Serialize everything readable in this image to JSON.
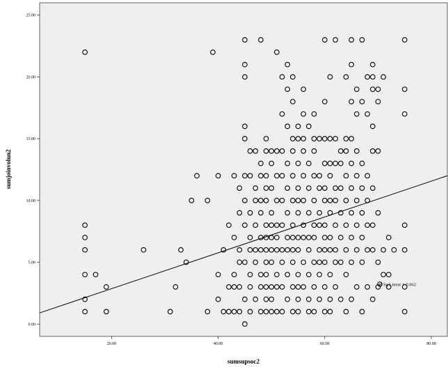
{
  "chart_data": {
    "type": "scatter",
    "title": "",
    "xlabel": "sumsupsoc2",
    "ylabel": "sumjoinvolun2",
    "xlim": [
      6.5,
      83
    ],
    "ylim": [
      -1,
      26
    ],
    "x_ticks": [
      {
        "value": 20,
        "label": "20.00"
      },
      {
        "value": 40,
        "label": "40.00"
      },
      {
        "value": 60,
        "label": "60.00"
      },
      {
        "value": 80,
        "label": "80.00"
      }
    ],
    "y_ticks": [
      {
        "value": 0,
        "label": "0.00"
      },
      {
        "value": 5,
        "label": "5.00"
      },
      {
        "value": 10,
        "label": "10.00"
      },
      {
        "value": 15,
        "label": "15.00"
      },
      {
        "value": 20,
        "label": "20.00"
      },
      {
        "value": 25,
        "label": "25.00"
      }
    ],
    "grid": false,
    "fit_line": {
      "type": "linear",
      "x": [
        6.5,
        83
      ],
      "y": [
        0.9,
        12.0
      ],
      "legend_label": "R Sq Linear = 0.062"
    },
    "legend_position": "inside-right",
    "background": "#efefef",
    "marker": "open-circle",
    "points": [
      [
        15,
        22
      ],
      [
        15,
        8
      ],
      [
        15,
        7
      ],
      [
        15,
        6
      ],
      [
        15,
        4
      ],
      [
        15,
        2
      ],
      [
        15,
        1
      ],
      [
        17,
        4
      ],
      [
        19,
        3
      ],
      [
        19,
        1
      ],
      [
        26,
        6
      ],
      [
        31,
        1
      ],
      [
        32,
        3
      ],
      [
        33,
        6
      ],
      [
        34,
        5
      ],
      [
        35,
        10
      ],
      [
        36,
        12
      ],
      [
        38,
        10
      ],
      [
        38,
        1
      ],
      [
        39,
        22
      ],
      [
        40,
        12
      ],
      [
        40,
        4
      ],
      [
        40,
        2
      ],
      [
        41,
        6
      ],
      [
        41,
        1
      ],
      [
        42,
        8
      ],
      [
        42,
        3
      ],
      [
        42,
        1
      ],
      [
        43,
        12
      ],
      [
        43,
        7
      ],
      [
        43,
        4
      ],
      [
        43,
        3
      ],
      [
        43,
        1
      ],
      [
        44,
        11
      ],
      [
        44,
        9
      ],
      [
        44,
        6
      ],
      [
        44,
        5
      ],
      [
        44,
        3
      ],
      [
        44,
        1
      ],
      [
        45,
        23
      ],
      [
        45,
        21
      ],
      [
        45,
        20
      ],
      [
        45,
        16
      ],
      [
        45,
        15
      ],
      [
        45,
        12
      ],
      [
        45,
        10
      ],
      [
        45,
        8
      ],
      [
        45,
        5
      ],
      [
        45,
        2
      ],
      [
        45,
        0
      ],
      [
        46,
        14
      ],
      [
        46,
        12
      ],
      [
        46,
        9
      ],
      [
        46,
        7
      ],
      [
        46,
        6
      ],
      [
        46,
        4
      ],
      [
        46,
        3
      ],
      [
        46,
        1
      ],
      [
        47,
        14
      ],
      [
        47,
        11
      ],
      [
        47,
        10
      ],
      [
        47,
        8
      ],
      [
        47,
        6
      ],
      [
        47,
        5
      ],
      [
        47,
        2
      ],
      [
        48,
        23
      ],
      [
        48,
        13
      ],
      [
        48,
        12
      ],
      [
        48,
        10
      ],
      [
        48,
        9
      ],
      [
        48,
        7
      ],
      [
        48,
        6
      ],
      [
        48,
        4
      ],
      [
        48,
        3
      ],
      [
        48,
        1
      ],
      [
        49,
        15
      ],
      [
        49,
        14
      ],
      [
        49,
        12
      ],
      [
        49,
        11
      ],
      [
        49,
        10
      ],
      [
        49,
        8
      ],
      [
        49,
        7
      ],
      [
        49,
        6
      ],
      [
        49,
        5
      ],
      [
        49,
        4
      ],
      [
        49,
        3
      ],
      [
        49,
        2
      ],
      [
        49,
        1
      ],
      [
        50,
        14
      ],
      [
        50,
        13
      ],
      [
        50,
        11
      ],
      [
        50,
        9
      ],
      [
        50,
        8
      ],
      [
        50,
        7
      ],
      [
        50,
        6
      ],
      [
        50,
        5
      ],
      [
        50,
        3
      ],
      [
        50,
        2
      ],
      [
        50,
        1
      ],
      [
        51,
        22
      ],
      [
        51,
        14
      ],
      [
        51,
        12
      ],
      [
        51,
        10
      ],
      [
        51,
        8
      ],
      [
        51,
        7
      ],
      [
        51,
        6
      ],
      [
        51,
        4
      ],
      [
        51,
        3
      ],
      [
        51,
        1
      ],
      [
        52,
        20
      ],
      [
        52,
        17
      ],
      [
        52,
        14
      ],
      [
        52,
        12
      ],
      [
        52,
        10
      ],
      [
        52,
        8
      ],
      [
        52,
        6
      ],
      [
        52,
        5
      ],
      [
        52,
        3
      ],
      [
        52,
        1
      ],
      [
        53,
        21
      ],
      [
        53,
        19
      ],
      [
        53,
        16
      ],
      [
        53,
        13
      ],
      [
        53,
        11
      ],
      [
        53,
        9
      ],
      [
        53,
        7
      ],
      [
        53,
        6
      ],
      [
        53,
        4
      ],
      [
        53,
        2
      ],
      [
        54,
        20
      ],
      [
        54,
        18
      ],
      [
        54,
        15
      ],
      [
        54,
        14
      ],
      [
        54,
        12
      ],
      [
        54,
        10
      ],
      [
        54,
        8
      ],
      [
        54,
        7
      ],
      [
        54,
        6
      ],
      [
        54,
        5
      ],
      [
        54,
        3
      ],
      [
        54,
        1
      ],
      [
        55,
        16
      ],
      [
        55,
        15
      ],
      [
        55,
        13
      ],
      [
        55,
        11
      ],
      [
        55,
        10
      ],
      [
        55,
        9
      ],
      [
        55,
        7
      ],
      [
        55,
        6
      ],
      [
        55,
        4
      ],
      [
        55,
        3
      ],
      [
        55,
        2
      ],
      [
        55,
        1
      ],
      [
        56,
        19
      ],
      [
        56,
        17
      ],
      [
        56,
        15
      ],
      [
        56,
        14
      ],
      [
        56,
        12
      ],
      [
        56,
        10
      ],
      [
        56,
        8
      ],
      [
        56,
        7
      ],
      [
        56,
        5
      ],
      [
        56,
        3
      ],
      [
        57,
        16
      ],
      [
        57,
        13
      ],
      [
        57,
        11
      ],
      [
        57,
        9
      ],
      [
        57,
        7
      ],
      [
        57,
        6
      ],
      [
        57,
        4
      ],
      [
        57,
        2
      ],
      [
        57,
        1
      ],
      [
        58,
        17
      ],
      [
        58,
        15
      ],
      [
        58,
        14
      ],
      [
        58,
        12
      ],
      [
        58,
        10
      ],
      [
        58,
        8
      ],
      [
        58,
        7
      ],
      [
        58,
        5
      ],
      [
        58,
        3
      ],
      [
        58,
        1
      ],
      [
        59,
        15
      ],
      [
        59,
        12
      ],
      [
        59,
        11
      ],
      [
        59,
        9
      ],
      [
        59,
        8
      ],
      [
        59,
        6
      ],
      [
        59,
        5
      ],
      [
        59,
        4
      ],
      [
        59,
        2
      ],
      [
        60,
        23
      ],
      [
        60,
        18
      ],
      [
        60,
        15
      ],
      [
        60,
        13
      ],
      [
        60,
        11
      ],
      [
        60,
        10
      ],
      [
        60,
        8
      ],
      [
        60,
        7
      ],
      [
        60,
        6
      ],
      [
        60,
        5
      ],
      [
        60,
        3
      ],
      [
        60,
        1
      ],
      [
        61,
        20
      ],
      [
        61,
        15
      ],
      [
        61,
        13
      ],
      [
        61,
        12
      ],
      [
        61,
        10
      ],
      [
        61,
        9
      ],
      [
        61,
        7
      ],
      [
        61,
        6
      ],
      [
        61,
        4
      ],
      [
        61,
        2
      ],
      [
        61,
        1
      ],
      [
        62,
        23
      ],
      [
        62,
        15
      ],
      [
        62,
        13
      ],
      [
        62,
        11
      ],
      [
        62,
        10
      ],
      [
        62,
        8
      ],
      [
        62,
        6
      ],
      [
        62,
        5
      ],
      [
        62,
        3
      ],
      [
        63,
        14
      ],
      [
        63,
        13
      ],
      [
        63,
        11
      ],
      [
        63,
        9
      ],
      [
        63,
        7
      ],
      [
        63,
        5
      ],
      [
        63,
        2
      ],
      [
        64,
        20
      ],
      [
        64,
        15
      ],
      [
        64,
        14
      ],
      [
        64,
        12
      ],
      [
        64,
        10
      ],
      [
        64,
        8
      ],
      [
        64,
        6
      ],
      [
        64,
        4
      ],
      [
        64,
        1
      ],
      [
        65,
        23
      ],
      [
        65,
        21
      ],
      [
        65,
        18
      ],
      [
        65,
        15
      ],
      [
        65,
        13
      ],
      [
        65,
        11
      ],
      [
        65,
        9
      ],
      [
        65,
        7
      ],
      [
        65,
        5
      ],
      [
        65,
        2
      ],
      [
        66,
        19
      ],
      [
        66,
        17
      ],
      [
        66,
        14
      ],
      [
        66,
        12
      ],
      [
        66,
        10
      ],
      [
        66,
        8
      ],
      [
        66,
        6
      ],
      [
        66,
        3
      ],
      [
        67,
        23
      ],
      [
        67,
        18
      ],
      [
        67,
        13
      ],
      [
        67,
        11
      ],
      [
        67,
        9
      ],
      [
        67,
        7
      ],
      [
        67,
        5
      ],
      [
        67,
        1
      ],
      [
        68,
        20
      ],
      [
        68,
        17
      ],
      [
        68,
        12
      ],
      [
        68,
        10
      ],
      [
        68,
        8
      ],
      [
        68,
        6
      ],
      [
        68,
        3
      ],
      [
        69,
        21
      ],
      [
        69,
        20
      ],
      [
        69,
        19
      ],
      [
        69,
        16
      ],
      [
        69,
        14
      ],
      [
        69,
        11
      ],
      [
        69,
        8
      ],
      [
        69,
        6
      ],
      [
        69,
        2
      ],
      [
        70,
        19
      ],
      [
        70,
        18
      ],
      [
        70,
        14
      ],
      [
        70,
        9
      ],
      [
        70,
        5
      ],
      [
        70,
        3
      ],
      [
        71,
        20
      ],
      [
        71,
        6
      ],
      [
        71,
        4
      ],
      [
        72,
        7
      ],
      [
        72,
        4
      ],
      [
        72,
        3
      ],
      [
        73,
        6
      ],
      [
        75,
        23
      ],
      [
        75,
        19
      ],
      [
        75,
        17
      ],
      [
        75,
        8
      ],
      [
        75,
        6
      ],
      [
        75,
        3
      ],
      [
        75,
        1
      ]
    ]
  }
}
